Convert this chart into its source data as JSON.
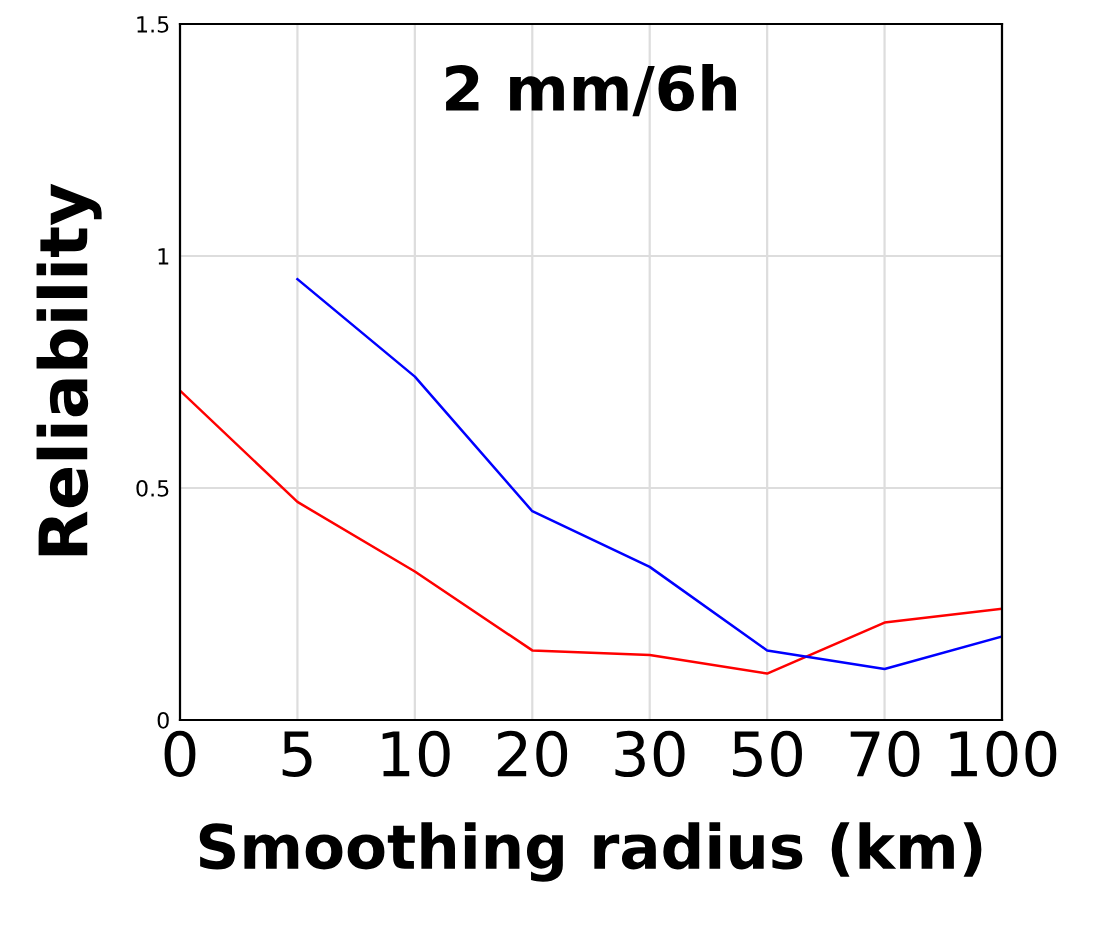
{
  "chart_data": {
    "type": "line",
    "title": "2 mm/6h",
    "xlabel": "Smoothing radius (km)",
    "ylabel": "Reliability",
    "categories": [
      "0",
      "5",
      "10",
      "20",
      "30",
      "50",
      "70",
      "100"
    ],
    "series": [
      {
        "color": "#ff0000",
        "values": [
          0.71,
          0.47,
          0.32,
          0.15,
          0.14,
          0.1,
          0.21,
          0.24
        ]
      },
      {
        "color": "#0000ff",
        "values": [
          null,
          0.95,
          0.74,
          0.45,
          0.33,
          0.15,
          0.11,
          0.18
        ]
      }
    ],
    "ylim": [
      0,
      1.5
    ],
    "yticks": [
      0,
      0.5,
      1,
      1.5
    ],
    "grid": true,
    "legend": false,
    "marker": "none",
    "line_style": "solid"
  }
}
